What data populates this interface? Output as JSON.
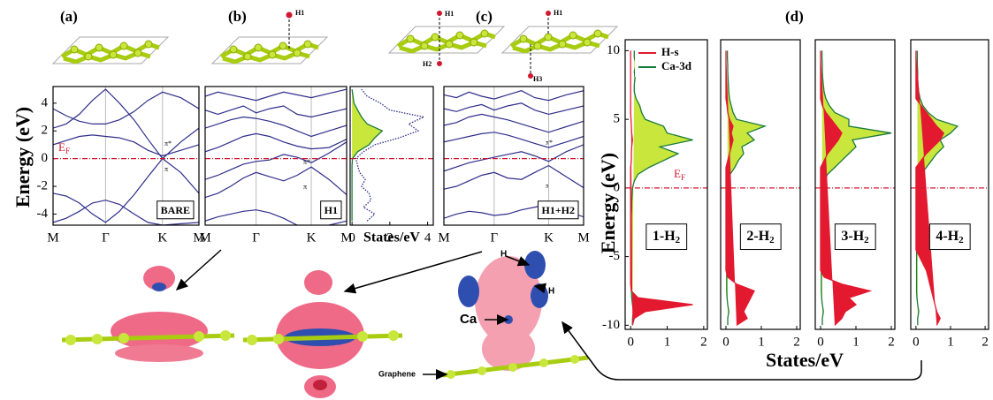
{
  "figure": {
    "panel_labels": [
      "(a)",
      "(b)",
      "(c)",
      "(d)"
    ],
    "structure_labels": [
      "H1",
      "H1",
      "H2",
      "H1",
      "H3"
    ],
    "isosurface_labels": [
      "H",
      "H",
      "Ca",
      "Graphene"
    ]
  },
  "chart_data": [
    {
      "type": "line",
      "label": "BARE",
      "y_label": "Energy (eV)",
      "fermi_label": {
        "main": "E",
        "sub": "F"
      },
      "annotations": [
        "π*",
        "π"
      ],
      "color": "#2e2e8c",
      "fermi_level": 0,
      "xlim": [
        0,
        1
      ],
      "xticks": [
        {
          "value": 0,
          "label": "M"
        },
        {
          "value": 0.36,
          "label": "Γ"
        },
        {
          "value": 0.75,
          "label": "K"
        },
        {
          "value": 1,
          "label": "M"
        }
      ],
      "ylim": [
        -4.8,
        5.2
      ],
      "yticks": [
        -4,
        -2,
        0,
        2,
        4
      ],
      "x": [
        0,
        0.09,
        0.18,
        0.27,
        0.36,
        0.455,
        0.555,
        0.65,
        0.75,
        0.875,
        1
      ],
      "series": [
        {
          "values": [
            -2.5,
            -2.7,
            -3.2,
            -4.0,
            -4.6,
            -3.8,
            -2.6,
            -1.3,
            0,
            -1.0,
            -2.5
          ]
        },
        {
          "values": [
            2.2,
            2.5,
            3.2,
            4.2,
            5.0,
            4.0,
            2.8,
            1.4,
            0,
            1.2,
            2.2
          ]
        },
        {
          "values": [
            1.0,
            1.3,
            1.6,
            1.7,
            1.6,
            1.5,
            1.2,
            0.6,
            0.2,
            0.6,
            1.0
          ]
        },
        {
          "values": [
            -4.6,
            -4.3,
            -3.8,
            -3.2,
            -3.0,
            -3.3,
            -4.0,
            -4.6,
            -4.8,
            -4.7,
            -4.6
          ]
        },
        {
          "values": [
            3.6,
            3.1,
            2.7,
            2.5,
            2.5,
            2.8,
            3.4,
            4.2,
            4.8,
            4.4,
            3.6
          ]
        }
      ]
    },
    {
      "type": "line",
      "label": "H1",
      "annotations": [
        "π*",
        "π"
      ],
      "color": "#2e2e8c",
      "fermi_level": 0,
      "xlim": [
        0,
        1
      ],
      "xticks": [
        {
          "value": 0,
          "label": "M"
        },
        {
          "value": 0.36,
          "label": "Γ"
        },
        {
          "value": 0.75,
          "label": "K"
        },
        {
          "value": 1,
          "label": "M"
        }
      ],
      "ylim": [
        -4.8,
        5.2
      ],
      "x": [
        0,
        0.09,
        0.18,
        0.27,
        0.36,
        0.455,
        0.555,
        0.65,
        0.75,
        0.875,
        1
      ],
      "series": [
        {
          "values": [
            -4.5,
            -4.2,
            -4.0,
            -3.8,
            -3.7,
            -3.9,
            -4.3,
            -4.8,
            -5.0,
            -4.8,
            -4.5
          ]
        },
        {
          "values": [
            -2.8,
            -2.5,
            -2.0,
            -1.4,
            -1.0,
            -1.3,
            -1.6,
            -1.2,
            -0.6,
            -1.5,
            -2.6
          ]
        },
        {
          "values": [
            -1.5,
            -1.2,
            -0.8,
            -0.4,
            -0.2,
            -0.1,
            0.3,
            0.1,
            -0.3,
            0.4,
            1.2
          ]
        },
        {
          "values": [
            0.5,
            0.8,
            1.2,
            1.6,
            1.8,
            1.6,
            1.2,
            0.9,
            0.7,
            0.8,
            1.4
          ]
        },
        {
          "values": [
            2.2,
            2.5,
            2.8,
            3.0,
            2.9,
            2.7,
            2.4,
            2.0,
            1.6,
            2.0,
            2.4
          ]
        },
        {
          "values": [
            3.5,
            3.2,
            3.5,
            3.8,
            3.3,
            3.6,
            3.8,
            3.2,
            3.0,
            3.3,
            3.6
          ]
        },
        {
          "values": [
            4.5,
            4.8,
            4.6,
            4.4,
            4.2,
            4.5,
            4.8,
            4.6,
            4.4,
            4.7,
            5.0
          ]
        }
      ]
    },
    {
      "type": "dos",
      "x_label": "States/eV",
      "fermi_level": 0,
      "xlim": [
        -0.1,
        4.3
      ],
      "xticks": [
        0,
        2,
        4
      ],
      "ylim": [
        -4.8,
        5.2
      ],
      "y": [
        -4.5,
        -4,
        -3.5,
        -3,
        -2.5,
        -2,
        -1.5,
        -1,
        -0.5,
        0,
        0.5,
        1,
        1.5,
        2,
        2.5,
        3,
        3.5,
        4,
        4.5,
        5
      ],
      "series": [
        {
          "color": "#2e2e8c",
          "line_style": "dotted",
          "values": [
            0.8,
            1.2,
            0.6,
            1.0,
            0.9,
            0.5,
            0.7,
            0.4,
            0.3,
            0.2,
            0.6,
            1.2,
            2.5,
            3.5,
            3.0,
            3.8,
            2.0,
            1.5,
            0.8,
            0.5
          ]
        },
        {
          "color": "#1a7a3c",
          "fill": "#c8e63c",
          "values": [
            0,
            0,
            0,
            0,
            0,
            0,
            0,
            0,
            0,
            0.02,
            0.3,
            0.9,
            1.2,
            1.6,
            0.8,
            0.5,
            0.3,
            0.1,
            0.05,
            0
          ]
        }
      ]
    },
    {
      "type": "line",
      "label": "H1+H2",
      "annotations": [
        "π*",
        "π"
      ],
      "color": "#2e2e8c",
      "fermi_level": 0,
      "xlim": [
        0,
        1
      ],
      "xticks": [
        {
          "value": 0,
          "label": "M"
        },
        {
          "value": 0.36,
          "label": "Γ"
        },
        {
          "value": 0.75,
          "label": "K"
        },
        {
          "value": 1,
          "label": "M"
        }
      ],
      "ylim": [
        -4.8,
        5.2
      ],
      "x": [
        0,
        0.09,
        0.18,
        0.27,
        0.36,
        0.455,
        0.555,
        0.65,
        0.75,
        0.875,
        1
      ],
      "series": [
        {
          "values": [
            -4.3,
            -4.0,
            -3.8,
            -3.9,
            -4.1,
            -4.0,
            -3.7,
            -3.5,
            -3.3,
            -3.8,
            -4.2
          ]
        },
        {
          "values": [
            -2.2,
            -2.0,
            -1.6,
            -1.2,
            -1.0,
            -1.4,
            -1.5,
            -1.0,
            -0.5,
            -1.3,
            -2.1
          ]
        },
        {
          "values": [
            -0.9,
            -0.6,
            -0.3,
            -0.1,
            0.1,
            0.3,
            0.5,
            0.2,
            -0.2,
            0.5,
            1.0
          ]
        },
        {
          "values": [
            1.2,
            1.4,
            1.6,
            1.8,
            1.9,
            1.7,
            1.4,
            1.1,
            0.8,
            1.2,
            1.6
          ]
        },
        {
          "values": [
            2.4,
            2.6,
            3.0,
            3.2,
            3.0,
            2.8,
            2.5,
            2.2,
            1.9,
            2.3,
            2.7
          ]
        },
        {
          "values": [
            3.6,
            3.4,
            3.7,
            3.9,
            3.5,
            3.8,
            4.0,
            3.5,
            3.2,
            3.5,
            3.8
          ]
        },
        {
          "values": [
            4.6,
            4.4,
            4.8,
            4.5,
            4.3,
            4.6,
            4.9,
            4.4,
            4.2,
            4.6,
            4.9
          ]
        }
      ]
    },
    {
      "type": "dos",
      "label": {
        "main": "1-H",
        "sub": "2"
      },
      "y_label": "Energy (eV)",
      "x_label": "States/eV",
      "fermi_label": {
        "main": "E",
        "sub": "F"
      },
      "legend": "upper right",
      "fermi_level": 0,
      "xlim": [
        -0.15,
        2.1
      ],
      "xticks": [
        0,
        1,
        2
      ],
      "ylim": [
        -10.3,
        10.8
      ],
      "yticks": [
        -10,
        -5,
        0,
        5,
        10
      ],
      "y": [
        -10,
        -9.5,
        -9,
        -8.5,
        -8,
        -7.5,
        -7,
        -6.5,
        -6,
        -5.5,
        -5,
        -4.5,
        -4,
        -3.5,
        -3,
        -2.5,
        -2,
        -1.5,
        -1,
        -0.5,
        0,
        0.5,
        1,
        1.5,
        2,
        2.5,
        3,
        3.5,
        4,
        4.5,
        5,
        5.5,
        6,
        6.5,
        7,
        7.5,
        8,
        8.5,
        9,
        9.5,
        10
      ],
      "series": [
        {
          "name": "H-s",
          "color": "#e3192f",
          "fill": "#e3192f",
          "values": [
            0.05,
            0.1,
            0.4,
            1.7,
            0.2,
            0.02,
            0,
            0,
            0,
            0,
            0,
            0,
            0,
            0,
            0,
            0,
            0,
            0,
            0,
            0,
            0,
            0,
            0,
            0,
            0.02,
            0.02,
            0.03,
            0.05,
            0.03,
            0.02,
            0.01,
            0,
            0,
            0,
            0,
            0,
            0,
            0,
            0,
            0,
            0
          ]
        },
        {
          "name": "Ca-3d",
          "color": "#1a7a3c",
          "fill": "#c8e63c",
          "values": [
            0.05,
            0.05,
            0.08,
            0.05,
            0.03,
            0.02,
            0.02,
            0.02,
            0.02,
            0.02,
            0.02,
            0.02,
            0.02,
            0.02,
            0.02,
            0.02,
            0.02,
            0.03,
            0.03,
            0.04,
            0.05,
            0.1,
            0.2,
            0.5,
            0.9,
            1.3,
            0.8,
            1.7,
            1.0,
            0.9,
            0.4,
            0.3,
            0.25,
            0.15,
            0.1,
            0.1,
            0.12,
            0.1,
            0.15,
            0.1,
            0.1
          ]
        }
      ]
    },
    {
      "type": "dos",
      "label": {
        "main": "2-H",
        "sub": "2"
      },
      "fermi_level": 0,
      "xlim": [
        -0.15,
        2.1
      ],
      "xticks": [
        0,
        1,
        2
      ],
      "ylim": [
        -10.3,
        10.8
      ],
      "y": [
        -10,
        -9.5,
        -9,
        -8.5,
        -8,
        -7.5,
        -7,
        -6.5,
        -6,
        -5.5,
        -5,
        -4.5,
        -4,
        -3.5,
        -3,
        -2.5,
        -2,
        -1.5,
        -1,
        -0.5,
        0,
        0.5,
        1,
        1.5,
        2,
        2.5,
        3,
        3.5,
        4,
        4.5,
        5,
        5.5,
        6,
        6.5,
        7,
        7.5,
        8,
        8.5,
        9,
        9.5,
        10
      ],
      "series": [
        {
          "color": "#e3192f",
          "fill": "#e3192f",
          "values": [
            0.3,
            0.6,
            0.5,
            0.6,
            0.7,
            0.8,
            0.3,
            0.05,
            0,
            0,
            0,
            0,
            0,
            0,
            0,
            0,
            0,
            0,
            0,
            0,
            0,
            0,
            0,
            0,
            0.05,
            0.1,
            0.15,
            0.2,
            0.15,
            0.2,
            0.1,
            0.05,
            0.03,
            0,
            0,
            0,
            0,
            0,
            0,
            0,
            0
          ]
        },
        {
          "color": "#1a7a3c",
          "fill": "#c8e63c",
          "values": [
            0.05,
            0.05,
            0.08,
            0.05,
            0.03,
            0.02,
            0.02,
            0.02,
            0.02,
            0.02,
            0.02,
            0.02,
            0.02,
            0.02,
            0.02,
            0.02,
            0.02,
            0.03,
            0.03,
            0.04,
            0.05,
            0.08,
            0.12,
            0.25,
            0.35,
            0.5,
            0.45,
            0.8,
            0.6,
            1.1,
            0.3,
            0.2,
            0.15,
            0.1,
            0.08,
            0.07,
            0.06,
            0.05,
            0.05,
            0.04,
            0.04
          ]
        }
      ]
    },
    {
      "type": "dos",
      "label": {
        "main": "3-H",
        "sub": "2"
      },
      "fermi_level": 0,
      "xlim": [
        -0.15,
        2.1
      ],
      "xticks": [
        0,
        1,
        2
      ],
      "ylim": [
        -10.3,
        10.8
      ],
      "y": [
        -10,
        -9.5,
        -9,
        -8.5,
        -8,
        -7.5,
        -7,
        -6.5,
        -6,
        -5.5,
        -5,
        -4.5,
        -4,
        -3.5,
        -3,
        -2.5,
        -2,
        -1.5,
        -1,
        -0.5,
        0,
        0.5,
        1,
        1.5,
        2,
        2.5,
        3,
        3.5,
        4,
        4.5,
        5,
        5.5,
        6,
        6.5,
        7,
        7.5,
        8,
        8.5,
        9,
        9.5,
        10
      ],
      "series": [
        {
          "color": "#e3192f",
          "fill": "#e3192f",
          "values": [
            0.4,
            0.6,
            0.7,
            1.0,
            0.8,
            1.4,
            0.6,
            0.1,
            0,
            0,
            0,
            0,
            0,
            0,
            0,
            0,
            0,
            0,
            0,
            0,
            0,
            0,
            0,
            0,
            0.1,
            0.2,
            0.35,
            0.5,
            0.6,
            0.45,
            0.3,
            0.15,
            0.05,
            0,
            0,
            0,
            0,
            0,
            0,
            0,
            0
          ]
        },
        {
          "color": "#1a7a3c",
          "fill": "#c8e63c",
          "values": [
            0.05,
            0.05,
            0.08,
            0.05,
            0.03,
            0.02,
            0.02,
            0.02,
            0.02,
            0.02,
            0.02,
            0.02,
            0.02,
            0.02,
            0.02,
            0.02,
            0.02,
            0.03,
            0.03,
            0.04,
            0.05,
            0.1,
            0.2,
            0.4,
            0.6,
            0.8,
            1.0,
            0.9,
            2.0,
            0.8,
            0.8,
            0.4,
            0.25,
            0.15,
            0.1,
            0.08,
            0.06,
            0.05,
            0.05,
            0.04,
            0.04
          ]
        }
      ]
    },
    {
      "type": "dos",
      "label": {
        "main": "4-H",
        "sub": "2"
      },
      "fermi_level": 0,
      "xlim": [
        -0.15,
        2.1
      ],
      "xticks": [
        0,
        1,
        2
      ],
      "ylim": [
        -10.3,
        10.8
      ],
      "y": [
        -10,
        -9.5,
        -9,
        -8.5,
        -8,
        -7.5,
        -7,
        -6.5,
        -6,
        -5.5,
        -5,
        -4.5,
        -4,
        -3.5,
        -3,
        -2.5,
        -2,
        -1.5,
        -1,
        -0.5,
        0,
        0.5,
        1,
        1.5,
        2,
        2.5,
        3,
        3.5,
        4,
        4.5,
        5,
        5.5,
        6,
        6.5,
        7,
        7.5,
        8,
        8.5,
        9,
        9.5,
        10
      ],
      "series": [
        {
          "color": "#e3192f",
          "fill": "#e3192f",
          "values": [
            0.6,
            0.7,
            0.6,
            0.55,
            0.5,
            0.45,
            0.4,
            0.35,
            0.3,
            0.2,
            0.1,
            0,
            0,
            0,
            0,
            0,
            0,
            0,
            0,
            0,
            0,
            0,
            0,
            0,
            0.15,
            0.3,
            0.5,
            0.7,
            0.8,
            0.6,
            0.45,
            0.3,
            0.15,
            0,
            0,
            0,
            0,
            0,
            0,
            0,
            0
          ]
        },
        {
          "color": "#1a7a3c",
          "fill": "#c8e63c",
          "values": [
            0.05,
            0.05,
            0.08,
            0.05,
            0.03,
            0.02,
            0.02,
            0.02,
            0.02,
            0.02,
            0.02,
            0.02,
            0.02,
            0.02,
            0.02,
            0.02,
            0.02,
            0.03,
            0.03,
            0.04,
            0.05,
            0.1,
            0.15,
            0.3,
            0.45,
            0.6,
            0.8,
            0.7,
            1.0,
            1.2,
            0.6,
            0.35,
            0.2,
            0.12,
            0.08,
            0.06,
            0.05,
            0.05,
            0.04,
            0.04,
            0.04
          ]
        }
      ]
    }
  ]
}
